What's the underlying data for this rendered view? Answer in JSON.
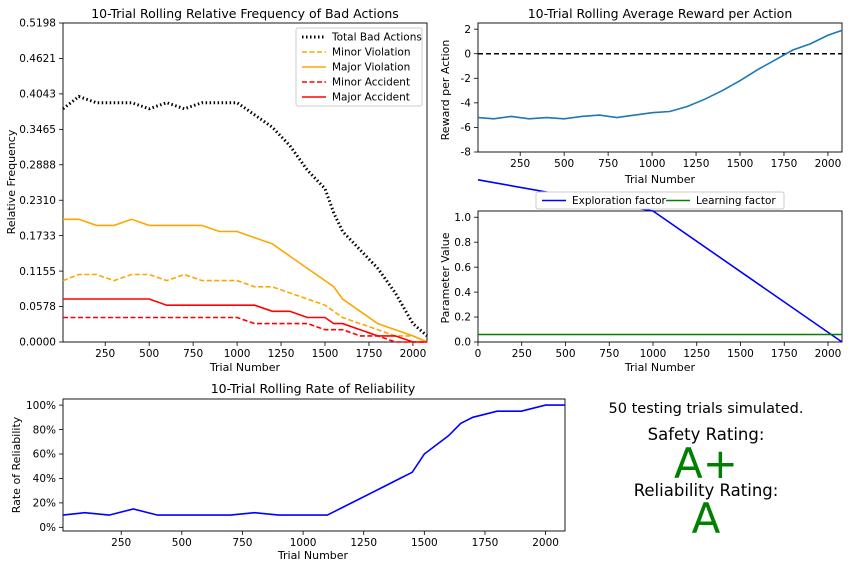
{
  "chart_data": [
    {
      "type": "line",
      "title": "10-Trial Rolling Relative Frequency of Bad Actions",
      "xlabel": "Trial Number",
      "ylabel": "Relative Frequency",
      "xlim": [
        10,
        2080
      ],
      "ylim": [
        0.0,
        0.5198
      ],
      "xticks": [
        250,
        500,
        750,
        1000,
        1250,
        1500,
        1750,
        2000
      ],
      "yticks": [
        "0.0000",
        "0.0578",
        "0.1155",
        "0.1733",
        "0.2310",
        "0.2888",
        "0.3465",
        "0.4043",
        "0.4621",
        "0.5198"
      ],
      "legend_position": "top-right",
      "x": [
        10,
        100,
        200,
        300,
        400,
        500,
        600,
        700,
        800,
        900,
        1000,
        1100,
        1200,
        1300,
        1400,
        1500,
        1550,
        1600,
        1700,
        1800,
        1900,
        2000,
        2080
      ],
      "series": [
        {
          "name": "Total Bad Actions",
          "color": "#000000",
          "style": "dotted",
          "values": [
            0.38,
            0.4,
            0.39,
            0.39,
            0.39,
            0.38,
            0.39,
            0.38,
            0.39,
            0.39,
            0.39,
            0.37,
            0.35,
            0.32,
            0.28,
            0.25,
            0.21,
            0.18,
            0.15,
            0.12,
            0.08,
            0.03,
            0.01
          ]
        },
        {
          "name": "Minor Violation",
          "color": "#ffa500",
          "style": "dashed",
          "values": [
            0.1,
            0.11,
            0.11,
            0.1,
            0.11,
            0.11,
            0.1,
            0.11,
            0.1,
            0.1,
            0.1,
            0.09,
            0.09,
            0.08,
            0.07,
            0.06,
            0.05,
            0.04,
            0.03,
            0.02,
            0.01,
            0.01,
            0.0
          ]
        },
        {
          "name": "Major Violation",
          "color": "#ffa500",
          "style": "solid",
          "values": [
            0.2,
            0.2,
            0.19,
            0.19,
            0.2,
            0.19,
            0.19,
            0.19,
            0.19,
            0.18,
            0.18,
            0.17,
            0.16,
            0.14,
            0.12,
            0.1,
            0.09,
            0.07,
            0.05,
            0.03,
            0.02,
            0.01,
            0.0
          ]
        },
        {
          "name": "Minor Accident",
          "color": "#ff0000",
          "style": "dashed",
          "values": [
            0.04,
            0.04,
            0.04,
            0.04,
            0.04,
            0.04,
            0.04,
            0.04,
            0.04,
            0.04,
            0.04,
            0.03,
            0.03,
            0.03,
            0.03,
            0.02,
            0.02,
            0.02,
            0.01,
            0.01,
            0.0,
            0.0,
            0.0
          ]
        },
        {
          "name": "Major Accident",
          "color": "#ff0000",
          "style": "solid",
          "values": [
            0.07,
            0.07,
            0.07,
            0.07,
            0.07,
            0.07,
            0.06,
            0.06,
            0.06,
            0.06,
            0.06,
            0.06,
            0.05,
            0.05,
            0.04,
            0.04,
            0.03,
            0.03,
            0.02,
            0.01,
            0.01,
            0.0,
            0.0
          ]
        }
      ]
    },
    {
      "type": "line",
      "title": "10-Trial Rolling Average Reward per Action",
      "xlabel": "Trial Number",
      "ylabel": "Reward per Action",
      "xlim": [
        10,
        2080
      ],
      "ylim": [
        -8,
        2.5
      ],
      "xticks": [
        250,
        500,
        750,
        1000,
        1250,
        1500,
        1750,
        2000
      ],
      "yticks": [
        -8,
        -6,
        -4,
        -2,
        0,
        2
      ],
      "reference_line": 0,
      "series": [
        {
          "color": "#1f77b4",
          "x": [
            10,
            100,
            200,
            300,
            400,
            500,
            600,
            700,
            800,
            900,
            1000,
            1100,
            1200,
            1300,
            1400,
            1500,
            1600,
            1700,
            1800,
            1900,
            2000,
            2080
          ],
          "values": [
            -5.2,
            -5.3,
            -5.1,
            -5.3,
            -5.2,
            -5.3,
            -5.1,
            -5.0,
            -5.2,
            -5.0,
            -4.8,
            -4.7,
            -4.3,
            -3.7,
            -3.0,
            -2.2,
            -1.3,
            -0.5,
            0.3,
            0.8,
            1.5,
            1.9
          ]
        }
      ]
    },
    {
      "type": "line",
      "xlabel": "Trial Number",
      "ylabel": "Parameter Value",
      "xlim": [
        0,
        2080
      ],
      "ylim": [
        0,
        1.05
      ],
      "xticks": [
        0,
        250,
        500,
        750,
        1000,
        1250,
        1500,
        1750,
        2000
      ],
      "yticks": [
        "0.0",
        "0.2",
        "0.4",
        "0.6",
        "0.8",
        "1.0"
      ],
      "legend_position": "top-center",
      "series": [
        {
          "name": "Exploration factor",
          "color": "#0000ff",
          "x": [
            0,
            1000,
            2080
          ],
          "values": [
            1.3,
            1.05,
            0.0
          ]
        },
        {
          "name": "Learning factor",
          "color": "#008000",
          "x": [
            0,
            2080
          ],
          "values": [
            0.06,
            0.06
          ]
        }
      ]
    },
    {
      "type": "line",
      "title": "10-Trial Rolling Rate of Reliability",
      "xlabel": "Trial Number",
      "ylabel": "Rate of Reliability",
      "xlim": [
        10,
        2080
      ],
      "ylim": [
        -3,
        105
      ],
      "xticks": [
        250,
        500,
        750,
        1000,
        1250,
        1500,
        1750,
        2000
      ],
      "yticks": [
        "0%",
        "20%",
        "40%",
        "60%",
        "80%",
        "100%"
      ],
      "series": [
        {
          "color": "#0000ff",
          "x": [
            10,
            100,
            200,
            300,
            400,
            500,
            600,
            700,
            800,
            900,
            1000,
            1100,
            1200,
            1300,
            1400,
            1450,
            1500,
            1600,
            1650,
            1700,
            1800,
            1900,
            2000,
            2080
          ],
          "values": [
            10,
            12,
            10,
            15,
            10,
            10,
            10,
            10,
            12,
            10,
            10,
            10,
            20,
            30,
            40,
            45,
            60,
            75,
            85,
            90,
            95,
            95,
            100,
            100
          ]
        }
      ]
    }
  ],
  "summary": {
    "trials_text": "50 testing trials simulated.",
    "safety_label": "Safety Rating:",
    "safety_grade": "A+",
    "reliability_label": "Reliability Rating:",
    "reliability_grade": "A",
    "grade_color": "#008000"
  }
}
